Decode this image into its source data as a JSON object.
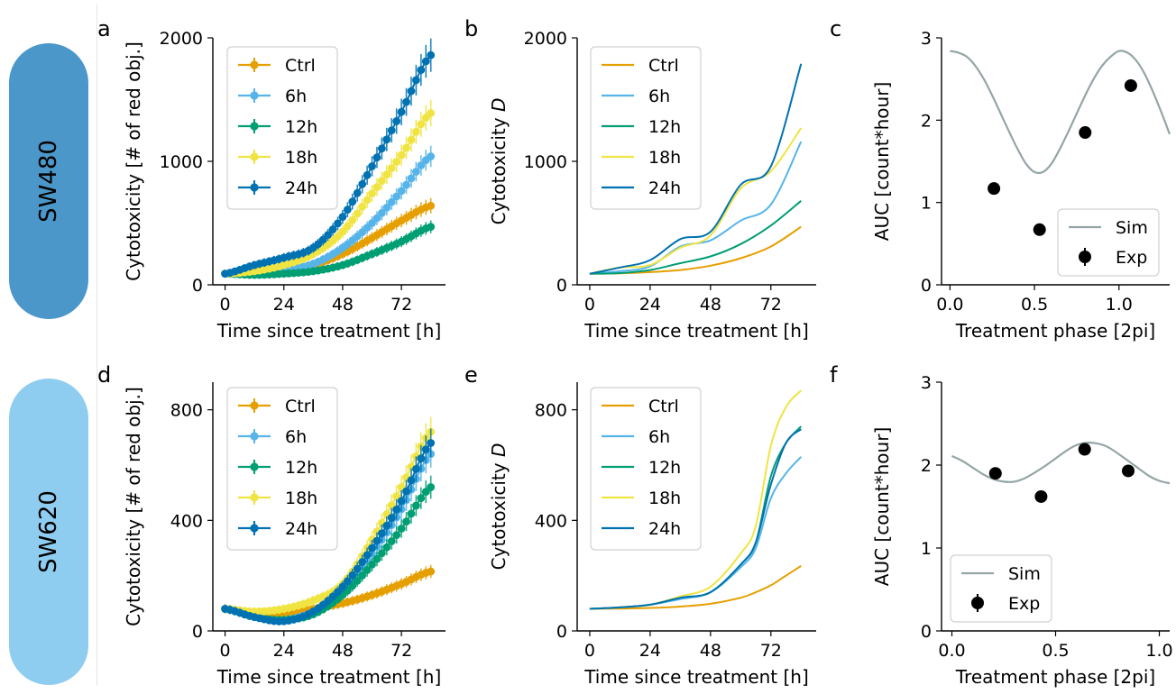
{
  "rows": [
    {
      "label": "SW480",
      "color": "#4b97c9"
    },
    {
      "label": "SW620",
      "color": "#8ecdf0"
    }
  ],
  "colors": {
    "Ctrl": "#e69f00",
    "6h": "#56b4e9",
    "12h": "#009e73",
    "18h": "#f0e442",
    "24h": "#0072b2",
    "Sim": "#95a5a6",
    "Exp": "#000000"
  },
  "chart_data": [
    {
      "panel": "a",
      "type": "line",
      "xlabel": "Time since treatment [h]",
      "ylabel": "Cytotoxicity [# of red obj.]",
      "xlim": [
        -5,
        90
      ],
      "ylim": [
        0,
        2000
      ],
      "xticks": [
        0,
        24,
        48,
        72
      ],
      "yticks": [
        0,
        1000,
        2000
      ],
      "legend": "top-left",
      "error_bars": true,
      "x": [
        0,
        12,
        24,
        36,
        48,
        60,
        72,
        84
      ],
      "series": [
        {
          "name": "Ctrl",
          "values": [
            90,
            100,
            120,
            160,
            250,
            380,
            520,
            640
          ]
        },
        {
          "name": "6h",
          "values": [
            90,
            100,
            120,
            170,
            300,
            500,
            760,
            1040
          ]
        },
        {
          "name": "12h",
          "values": [
            90,
            80,
            90,
            110,
            160,
            250,
            350,
            470
          ]
        },
        {
          "name": "18h",
          "values": [
            90,
            110,
            160,
            250,
            430,
            740,
            1050,
            1390
          ]
        },
        {
          "name": "24h",
          "values": [
            90,
            160,
            220,
            300,
            550,
            960,
            1400,
            1860
          ]
        }
      ]
    },
    {
      "panel": "b",
      "type": "line",
      "xlabel": "Time since treatment [h]",
      "ylabel": "Cytotoxicity D",
      "xlim": [
        -5,
        90
      ],
      "ylim": [
        0,
        2000
      ],
      "xticks": [
        0,
        24,
        48,
        72
      ],
      "yticks": [
        0,
        1000,
        2000
      ],
      "legend": "top-left",
      "x": [
        0,
        12,
        24,
        36,
        48,
        60,
        72,
        84
      ],
      "series": [
        {
          "name": "Ctrl",
          "values": [
            90,
            93,
            103,
            120,
            155,
            215,
            310,
            470
          ]
        },
        {
          "name": "6h",
          "values": [
            90,
            110,
            150,
            310,
            360,
            520,
            650,
            1160
          ]
        },
        {
          "name": "12h",
          "values": [
            90,
            95,
            120,
            175,
            230,
            330,
            480,
            680
          ]
        },
        {
          "name": "18h",
          "values": [
            90,
            140,
            160,
            300,
            400,
            780,
            920,
            1270
          ]
        },
        {
          "name": "24h",
          "values": [
            90,
            140,
            200,
            370,
            430,
            810,
            960,
            1790
          ]
        }
      ]
    },
    {
      "panel": "c",
      "type": "scatter",
      "xlabel": "Treatment phase [2pi]",
      "ylabel": "AUC [count*hour]",
      "xlim": [
        -0.05,
        1.3
      ],
      "ylim": [
        0,
        3
      ],
      "xticks": [
        0.0,
        0.5,
        1.0
      ],
      "yticks": [
        0,
        1,
        2,
        3
      ],
      "legend": "bottom-right",
      "series": [
        {
          "name": "Sim",
          "type": "line",
          "x": [
            0,
            0.05,
            0.1,
            0.15,
            0.2,
            0.25,
            0.3,
            0.35,
            0.4,
            0.45,
            0.5,
            0.55,
            0.6,
            0.65,
            0.7,
            0.75,
            0.8,
            0.85,
            0.9,
            0.95,
            1.0,
            1.05,
            1.1,
            1.15,
            1.2,
            1.25,
            1.3
          ],
          "values": [
            2.84,
            2.82,
            2.77,
            2.66,
            2.5,
            2.3,
            2.08,
            1.86,
            1.65,
            1.47,
            1.37,
            1.37,
            1.47,
            1.65,
            1.86,
            2.08,
            2.3,
            2.5,
            2.66,
            2.77,
            2.84,
            2.82,
            2.73,
            2.57,
            2.35,
            2.1,
            1.83
          ]
        },
        {
          "name": "Exp",
          "type": "scatter",
          "x": [
            0.26,
            0.53,
            0.8,
            1.07
          ],
          "values": [
            1.17,
            0.67,
            1.85,
            2.42
          ]
        }
      ]
    },
    {
      "panel": "d",
      "type": "line",
      "xlabel": "Time since treatment [h]",
      "ylabel": "Cytotoxicity [# of red obj.]",
      "xlim": [
        -5,
        90
      ],
      "ylim": [
        0,
        900
      ],
      "xticks": [
        0,
        24,
        48,
        72
      ],
      "yticks": [
        0,
        400,
        800
      ],
      "legend": "top-left",
      "error_bars": true,
      "x": [
        0,
        12,
        24,
        36,
        48,
        60,
        72,
        84
      ],
      "series": [
        {
          "name": "Ctrl",
          "values": [
            80,
            60,
            65,
            80,
            100,
            130,
            170,
            215
          ]
        },
        {
          "name": "6h",
          "values": [
            80,
            50,
            40,
            70,
            150,
            280,
            440,
            640
          ]
        },
        {
          "name": "12h",
          "values": [
            80,
            50,
            40,
            60,
            130,
            240,
            370,
            520
          ]
        },
        {
          "name": "18h",
          "values": [
            80,
            70,
            80,
            110,
            170,
            330,
            520,
            720
          ]
        },
        {
          "name": "24h",
          "values": [
            80,
            50,
            35,
            70,
            160,
            300,
            470,
            680
          ]
        }
      ]
    },
    {
      "panel": "e",
      "type": "line",
      "xlabel": "Time since treatment [h]",
      "ylabel": "Cytotoxicity D",
      "xlim": [
        -5,
        90
      ],
      "ylim": [
        0,
        900
      ],
      "xticks": [
        0,
        24,
        48,
        72
      ],
      "yticks": [
        0,
        400,
        800
      ],
      "legend": "top-left",
      "x": [
        0,
        12,
        24,
        36,
        48,
        60,
        66,
        72,
        78,
        84
      ],
      "series": [
        {
          "name": "Ctrl",
          "values": [
            80,
            81,
            83,
            88,
            98,
            120,
            140,
            165,
            200,
            235
          ]
        },
        {
          "name": "6h",
          "values": [
            80,
            85,
            95,
            115,
            140,
            230,
            300,
            480,
            570,
            630
          ]
        },
        {
          "name": "12h",
          "values": [
            80,
            85,
            95,
            120,
            140,
            240,
            320,
            560,
            680,
            740
          ]
        },
        {
          "name": "18h",
          "values": [
            80,
            85,
            95,
            125,
            160,
            280,
            380,
            670,
            810,
            870
          ]
        },
        {
          "name": "24h",
          "values": [
            80,
            85,
            95,
            120,
            140,
            240,
            320,
            530,
            680,
            730
          ]
        }
      ]
    },
    {
      "panel": "f",
      "type": "scatter",
      "xlabel": "Treatment phase [2pi]",
      "ylabel": "AUC [count*hour]",
      "xlim": [
        -0.05,
        1.05
      ],
      "ylim": [
        0,
        3
      ],
      "xticks": [
        0.0,
        0.5,
        1.0
      ],
      "yticks": [
        0,
        1,
        2,
        3
      ],
      "legend": "bottom-left",
      "series": [
        {
          "name": "Sim",
          "type": "line",
          "x": [
            0,
            0.05,
            0.1,
            0.15,
            0.2,
            0.25,
            0.3,
            0.35,
            0.4,
            0.45,
            0.5,
            0.55,
            0.6,
            0.65,
            0.7,
            0.75,
            0.8,
            0.85,
            0.9,
            0.95,
            1.0,
            1.05
          ],
          "values": [
            2.11,
            2.05,
            1.97,
            1.89,
            1.83,
            1.8,
            1.8,
            1.84,
            1.91,
            1.99,
            2.08,
            2.17,
            2.24,
            2.27,
            2.26,
            2.22,
            2.14,
            2.05,
            1.96,
            1.87,
            1.81,
            1.78
          ]
        },
        {
          "name": "Exp",
          "type": "scatter",
          "x": [
            0.21,
            0.43,
            0.64,
            0.85
          ],
          "values": [
            1.9,
            1.62,
            2.19,
            1.93
          ]
        }
      ]
    }
  ]
}
